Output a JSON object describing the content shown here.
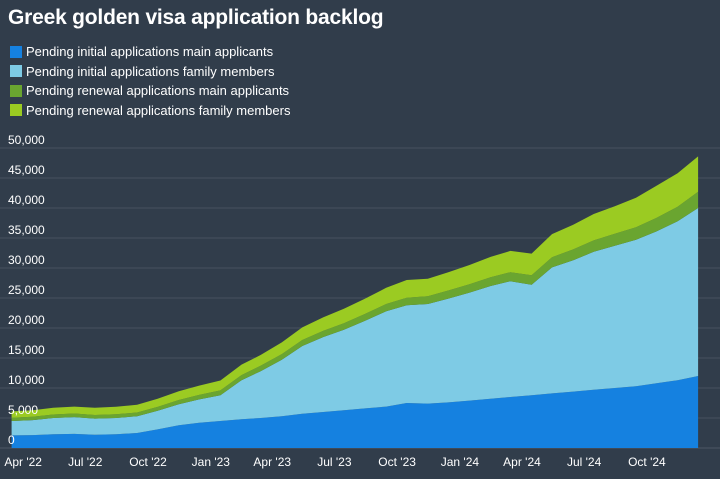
{
  "chart_data": {
    "type": "area",
    "stacked": true,
    "title": "Greek golden visa application backlog",
    "xlabel": "",
    "ylabel": "",
    "ylim": [
      0,
      50000
    ],
    "y_ticks": [
      "0",
      "5,000",
      "10,000",
      "15,000",
      "20,000",
      "25,000",
      "30,000",
      "35,000",
      "40,000",
      "45,000",
      "50,000"
    ],
    "x_tick_labels": [
      "Apr '22",
      "Jul '22",
      "Oct '22",
      "Jan '23",
      "Apr '23",
      "Jul '23",
      "Oct '23",
      "Jan '24",
      "Apr '24",
      "Jul '24",
      "Oct '24"
    ],
    "x_tick_dates": [
      "2022-04-01",
      "2022-07-01",
      "2022-10-01",
      "2023-01-01",
      "2023-04-01",
      "2023-07-01",
      "2023-10-01",
      "2024-01-01",
      "2024-04-01",
      "2024-07-01",
      "2024-10-01"
    ],
    "x_range": [
      "2022-03-01",
      "2024-12-31"
    ],
    "grid": true,
    "legend_position": "top-left",
    "x": [
      "2022-03-15",
      "2022-04-15",
      "2022-05-15",
      "2022-06-15",
      "2022-07-15",
      "2022-08-15",
      "2022-09-15",
      "2022-10-15",
      "2022-11-15",
      "2022-12-15",
      "2023-01-15",
      "2023-02-15",
      "2023-03-15",
      "2023-04-15",
      "2023-05-15",
      "2023-06-15",
      "2023-07-15",
      "2023-08-15",
      "2023-09-15",
      "2023-10-15",
      "2023-11-15",
      "2023-12-15",
      "2024-01-15",
      "2024-02-15",
      "2024-03-15",
      "2024-04-15",
      "2024-05-15",
      "2024-06-15",
      "2024-07-15",
      "2024-08-15",
      "2024-09-15",
      "2024-10-15",
      "2024-11-15",
      "2024-12-15"
    ],
    "series": [
      {
        "name": "Pending initial applications main applicants",
        "color": "#1581e0",
        "values": [
          2100,
          2150,
          2300,
          2350,
          2200,
          2300,
          2500,
          3100,
          3800,
          4200,
          4500,
          4800,
          5000,
          5300,
          5700,
          6000,
          6300,
          6600,
          6900,
          7500,
          7400,
          7600,
          7900,
          8200,
          8500,
          8800,
          9100,
          9400,
          9700,
          10000,
          10300,
          10800,
          11300,
          12000
        ]
      },
      {
        "name": "Pending initial applications family members",
        "color": "#7ecbe5",
        "values": [
          2400,
          2500,
          2700,
          2800,
          2700,
          2700,
          2800,
          3100,
          3500,
          3900,
          4300,
          6500,
          7800,
          9400,
          11300,
          12500,
          13400,
          14600,
          15900,
          16300,
          16600,
          17300,
          18000,
          18800,
          19300,
          18400,
          21000,
          21900,
          23000,
          23700,
          24400,
          25300,
          26500,
          28000
        ]
      },
      {
        "name": "Pending renewal applications main applicants",
        "color": "#6aa530",
        "values": [
          550,
          560,
          580,
          600,
          600,
          610,
          620,
          650,
          700,
          750,
          800,
          850,
          900,
          950,
          1000,
          1050,
          1100,
          1150,
          1200,
          1250,
          1300,
          1350,
          1400,
          1450,
          1500,
          1600,
          1700,
          1800,
          1900,
          2000,
          2100,
          2250,
          2400,
          2700
        ]
      },
      {
        "name": "Pending renewal applications family members",
        "color": "#9bcb22",
        "values": [
          1050,
          1090,
          1120,
          1150,
          1200,
          1250,
          1280,
          1350,
          1450,
          1550,
          1650,
          1750,
          1800,
          1950,
          2100,
          2250,
          2400,
          2550,
          2700,
          2950,
          2900,
          3050,
          3200,
          3400,
          3550,
          3600,
          3850,
          4100,
          4400,
          4600,
          4900,
          5350,
          5600,
          5900
        ]
      }
    ]
  }
}
